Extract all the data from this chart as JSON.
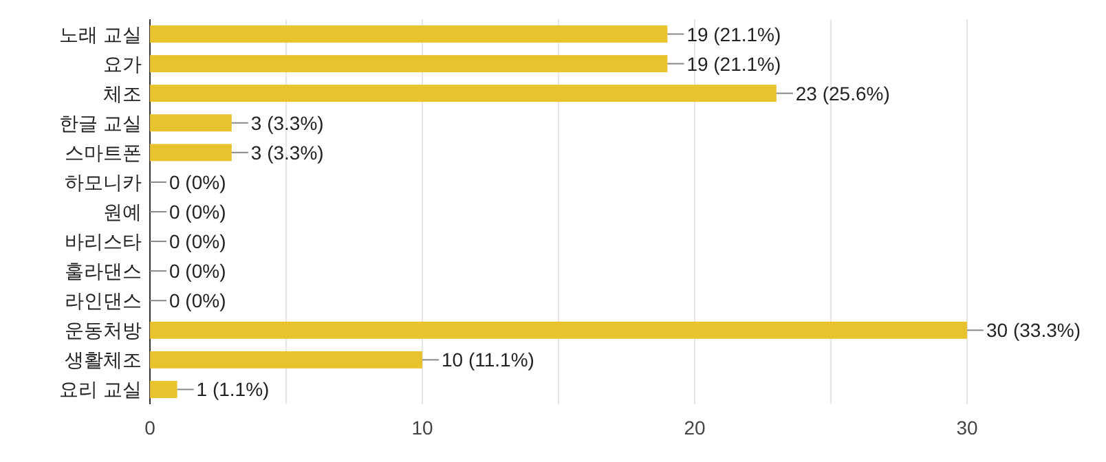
{
  "chart_data": {
    "type": "bar",
    "orientation": "horizontal",
    "categories": [
      "노래 교실",
      "요가",
      "체조",
      "한글 교실",
      "스마트폰",
      "하모니카",
      "원예",
      "바리스타",
      "훌라댄스",
      "라인댄스",
      "운동처방",
      "생활체조",
      "요리 교실"
    ],
    "values": [
      19,
      19,
      23,
      3,
      3,
      0,
      0,
      0,
      0,
      0,
      30,
      10,
      1
    ],
    "value_labels": [
      "19 (21.1%)",
      "19 (21.1%)",
      "23 (25.6%)",
      "3 (3.3%)",
      "3 (3.3%)",
      "0 (0%)",
      "0 (0%)",
      "0 (0%)",
      "0 (0%)",
      "0 (0%)",
      "30 (33.3%)",
      "10 (11.1%)",
      "1 (1.1%)"
    ],
    "color": "#e8c32e",
    "xlim": [
      0,
      30
    ],
    "xticks": [
      0,
      {
        "value": 5,
        "label": null
      },
      10,
      {
        "value": 15,
        "label": null
      },
      20,
      {
        "value": 25,
        "label": null
      },
      30
    ],
    "grid": "x"
  }
}
